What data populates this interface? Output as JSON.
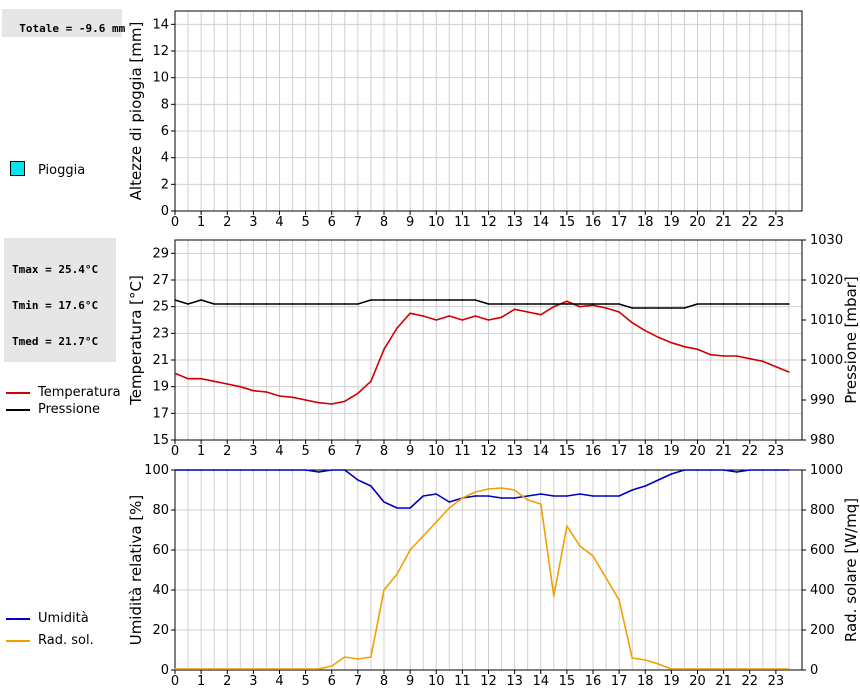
{
  "colors": {
    "rain": "#00e5ee",
    "temperature": "#d00000",
    "pressure": "#000000",
    "humidity": "#0000c0",
    "radiation": "#f0a000",
    "grid": "#d0d0d0",
    "infobox_bg": "#e6e6e6"
  },
  "info": {
    "rain_total": "Totale = -9.6 mm",
    "tmax": "Tmax = 25.4°C",
    "tmin": "Tmin = 17.6°C",
    "tmed": "Tmed = 21.7°C"
  },
  "legends": {
    "rain": "Pioggia",
    "temperature": "Temperatura",
    "pressure": "Pressione",
    "humidity": "Umidità",
    "radiation": "Rad. sol."
  },
  "chart_data": [
    {
      "type": "bar",
      "ylabel": "Altezze di pioggia [mm]",
      "xlim": [
        0,
        24
      ],
      "ylim": [
        0,
        15
      ],
      "x_ticks": [
        0,
        1,
        2,
        3,
        4,
        5,
        6,
        7,
        8,
        9,
        10,
        11,
        12,
        13,
        14,
        15,
        16,
        17,
        18,
        19,
        20,
        21,
        22,
        23
      ],
      "y_ticks": [
        0,
        2,
        4,
        6,
        8,
        10,
        12,
        14
      ],
      "grid": true,
      "series": [
        {
          "name": "Pioggia",
          "values": []
        }
      ]
    },
    {
      "type": "line",
      "ylabel": "Temperatura [°C]",
      "ylabel_right": "Pressione [mbar]",
      "xlim": [
        0,
        24
      ],
      "ylim": [
        15,
        30
      ],
      "ylim_right": [
        980,
        1030
      ],
      "x_ticks": [
        0,
        1,
        2,
        3,
        4,
        5,
        6,
        7,
        8,
        9,
        10,
        11,
        12,
        13,
        14,
        15,
        16,
        17,
        18,
        19,
        20,
        21,
        22,
        23
      ],
      "y_ticks": [
        15,
        17,
        19,
        21,
        23,
        25,
        27,
        29
      ],
      "y_ticks_right": [
        980,
        990,
        1000,
        1010,
        1020,
        1030
      ],
      "grid": true,
      "series": [
        {
          "name": "Temperatura",
          "axis": "left",
          "x": [
            0,
            0.5,
            1,
            1.5,
            2,
            2.5,
            3,
            3.5,
            4,
            4.5,
            5,
            5.5,
            6,
            6.5,
            7,
            7.5,
            8,
            8.5,
            9,
            9.5,
            10,
            10.5,
            11,
            11.5,
            12,
            12.5,
            13,
            13.5,
            14,
            14.5,
            15,
            15.5,
            16,
            16.5,
            17,
            17.5,
            18,
            18.5,
            19,
            19.5,
            20,
            20.5,
            21,
            21.5,
            22,
            22.5,
            23,
            23.5
          ],
          "values": [
            20.0,
            19.6,
            19.6,
            19.4,
            19.2,
            19.0,
            18.7,
            18.6,
            18.3,
            18.2,
            18.0,
            17.8,
            17.7,
            17.9,
            18.5,
            19.4,
            21.8,
            23.4,
            24.5,
            24.3,
            24.0,
            24.3,
            24.0,
            24.3,
            24.0,
            24.2,
            24.8,
            24.6,
            24.4,
            25.0,
            25.4,
            25.0,
            25.1,
            24.9,
            24.6,
            23.8,
            23.2,
            22.7,
            22.3,
            22.0,
            21.8,
            21.4,
            21.3,
            21.3,
            21.1,
            20.9,
            20.5,
            20.1
          ]
        },
        {
          "name": "Pressione",
          "axis": "right",
          "x": [
            0,
            0.5,
            1,
            1.5,
            2,
            2.5,
            3,
            3.5,
            4,
            4.5,
            5,
            5.5,
            6,
            6.5,
            7,
            7.5,
            8,
            8.5,
            9,
            9.5,
            10,
            10.5,
            11,
            11.5,
            12,
            12.5,
            13,
            13.5,
            14,
            14.5,
            15,
            15.5,
            16,
            16.5,
            17,
            17.5,
            18,
            18.5,
            19,
            19.5,
            20,
            20.5,
            21,
            21.5,
            22,
            22.5,
            23,
            23.5
          ],
          "values": [
            1015,
            1014,
            1015,
            1014,
            1014,
            1014,
            1014,
            1014,
            1014,
            1014,
            1014,
            1014,
            1014,
            1014,
            1014,
            1015,
            1015,
            1015,
            1015,
            1015,
            1015,
            1015,
            1015,
            1015,
            1014,
            1014,
            1014,
            1014,
            1014,
            1014,
            1014,
            1014,
            1014,
            1014,
            1014,
            1013,
            1013,
            1013,
            1013,
            1013,
            1014,
            1014,
            1014,
            1014,
            1014,
            1014,
            1014,
            1014
          ]
        }
      ]
    },
    {
      "type": "line",
      "ylabel": "Umidità relativa [%]",
      "ylabel_right": "Rad. solare [W/mq]",
      "xlim": [
        0,
        24
      ],
      "ylim": [
        0,
        100
      ],
      "ylim_right": [
        0,
        1000
      ],
      "x_ticks": [
        0,
        1,
        2,
        3,
        4,
        5,
        6,
        7,
        8,
        9,
        10,
        11,
        12,
        13,
        14,
        15,
        16,
        17,
        18,
        19,
        20,
        21,
        22,
        23
      ],
      "y_ticks": [
        0,
        20,
        40,
        60,
        80,
        100
      ],
      "y_ticks_right": [
        0,
        200,
        400,
        600,
        800,
        1000
      ],
      "grid": true,
      "series": [
        {
          "name": "Umidità",
          "axis": "left",
          "x": [
            0,
            0.5,
            1,
            1.5,
            2,
            2.5,
            3,
            3.5,
            4,
            4.5,
            5,
            5.5,
            6,
            6.5,
            7,
            7.5,
            8,
            8.5,
            9,
            9.5,
            10,
            10.5,
            11,
            11.5,
            12,
            12.5,
            13,
            13.5,
            14,
            14.5,
            15,
            15.5,
            16,
            16.5,
            17,
            17.5,
            18,
            18.5,
            19,
            19.5,
            20,
            20.5,
            21,
            21.5,
            22,
            22.5,
            23,
            23.5
          ],
          "values": [
            100,
            100,
            100,
            100,
            100,
            100,
            100,
            100,
            100,
            100,
            100,
            99,
            100,
            100,
            95,
            92,
            84,
            81,
            81,
            87,
            88,
            84,
            86,
            87,
            87,
            86,
            86,
            87,
            88,
            87,
            87,
            88,
            87,
            87,
            87,
            90,
            92,
            95,
            98,
            100,
            100,
            100,
            100,
            99,
            100,
            100,
            100,
            100
          ]
        },
        {
          "name": "Rad. sol.",
          "axis": "right",
          "x": [
            0,
            0.5,
            1,
            1.5,
            2,
            2.5,
            3,
            3.5,
            4,
            4.5,
            5,
            5.5,
            6,
            6.5,
            7,
            7.5,
            8,
            8.5,
            9,
            9.5,
            10,
            10.5,
            11,
            11.5,
            12,
            12.5,
            13,
            13.5,
            14,
            14.5,
            15,
            15.5,
            16,
            16.5,
            17,
            17.5,
            18,
            18.5,
            19,
            19.5,
            20,
            20.5,
            21,
            21.5,
            22,
            22.5,
            23,
            23.5
          ],
          "values": [
            5,
            5,
            5,
            5,
            5,
            5,
            5,
            5,
            5,
            5,
            5,
            5,
            20,
            65,
            55,
            65,
            400,
            480,
            600,
            670,
            740,
            810,
            860,
            890,
            905,
            910,
            900,
            850,
            830,
            370,
            720,
            620,
            570,
            460,
            350,
            60,
            50,
            30,
            5,
            5,
            5,
            5,
            5,
            5,
            5,
            5,
            5,
            5
          ]
        }
      ]
    }
  ]
}
